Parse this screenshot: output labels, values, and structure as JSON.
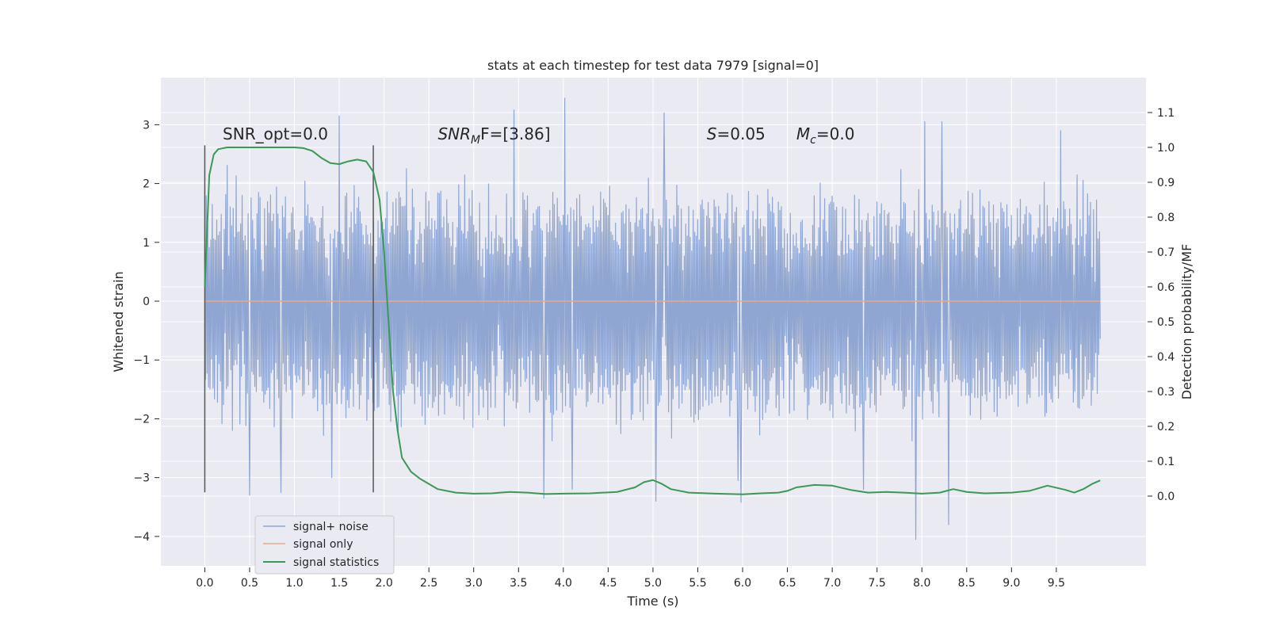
{
  "chart_data": {
    "type": "line",
    "title": "stats at each timestep for test data 7979 [signal=0]",
    "xlabel": "Time (s)",
    "ylabel": "Whitened strain",
    "y2label": "Detection probability/MF",
    "xlim": [
      -0.49,
      10.5
    ],
    "ylim": [
      -4.5,
      3.8
    ],
    "y2lim": [
      -0.2,
      1.2
    ],
    "x_ticks": [
      "0.0",
      "0.5",
      "1.0",
      "1.5",
      "2.0",
      "2.5",
      "3.0",
      "3.5",
      "4.0",
      "4.5",
      "5.0",
      "5.5",
      "6.0",
      "6.5",
      "7.0",
      "7.5",
      "8.0",
      "8.5",
      "9.0",
      "9.5"
    ],
    "y_ticks": [
      "3",
      "2",
      "1",
      "0",
      "−1",
      "−2",
      "−3",
      "−4"
    ],
    "y2_ticks": [
      "1.1",
      "1.0",
      "0.9",
      "0.8",
      "0.7",
      "0.6",
      "0.5",
      "0.4",
      "0.3",
      "0.2",
      "0.1",
      "0.0"
    ],
    "grid": true,
    "legend_position": "lower-left",
    "vlines": [
      0.0,
      1.88
    ],
    "vline_ymin": -3.25,
    "vline_ymax": 2.65,
    "annotations": [
      {
        "text": "SNR_opt=0.0",
        "x": 0.2,
        "y": 2.75
      },
      {
        "main": "SNR",
        "sub": "M",
        "rest": "F=[3.86]",
        "x": 2.6,
        "y": 2.75
      },
      {
        "main": "S",
        "rest": "=0.05",
        "x": 5.6,
        "y": 2.75
      },
      {
        "main": "M",
        "sub": "c",
        "rest": "=0.0",
        "x": 6.6,
        "y": 2.75
      }
    ],
    "series": [
      {
        "name": "signal+ noise",
        "color": "#8fa6d2",
        "noise": {
          "x_start": 0.0,
          "x_end": 9.99,
          "samples": 1200,
          "typical_min": -1.5,
          "typical_max": 1.4,
          "seed": 7979
        },
        "extremes": [
          {
            "x": 0.5,
            "y": -3.3
          },
          {
            "x": 0.85,
            "y": -3.25
          },
          {
            "x": 1.5,
            "y": 3.15
          },
          {
            "x": 1.42,
            "y": -3.0
          },
          {
            "x": 3.45,
            "y": 3.25
          },
          {
            "x": 3.78,
            "y": -3.35
          },
          {
            "x": 4.02,
            "y": 3.45
          },
          {
            "x": 4.1,
            "y": -3.2
          },
          {
            "x": 5.03,
            "y": -3.4
          },
          {
            "x": 5.12,
            "y": 3.2
          },
          {
            "x": 5.95,
            "y": -3.05
          },
          {
            "x": 5.98,
            "y": -3.42
          },
          {
            "x": 7.35,
            "y": -3.2
          },
          {
            "x": 7.93,
            "y": -4.05
          },
          {
            "x": 8.3,
            "y": -3.8
          },
          {
            "x": 8.03,
            "y": 3.05
          },
          {
            "x": 8.22,
            "y": 3.05
          },
          {
            "x": 9.55,
            "y": 2.9
          }
        ]
      },
      {
        "name": "signal only",
        "color": "#e8a989",
        "x": [
          0.0,
          9.99
        ],
        "y": [
          0.0,
          0.0
        ]
      },
      {
        "name": "signal statistics",
        "axis": "right",
        "color": "#3a9a55",
        "x": [
          0.0,
          0.05,
          0.1,
          0.15,
          0.25,
          0.4,
          0.6,
          0.8,
          1.0,
          1.1,
          1.2,
          1.3,
          1.4,
          1.5,
          1.6,
          1.7,
          1.8,
          1.88,
          1.95,
          2.0,
          2.05,
          2.1,
          2.15,
          2.2,
          2.3,
          2.4,
          2.6,
          2.8,
          3.0,
          3.2,
          3.4,
          3.6,
          3.8,
          4.0,
          4.3,
          4.6,
          4.8,
          4.9,
          5.0,
          5.1,
          5.2,
          5.4,
          5.7,
          6.0,
          6.2,
          6.4,
          6.5,
          6.6,
          6.8,
          7.0,
          7.2,
          7.4,
          7.6,
          7.8,
          8.0,
          8.2,
          8.35,
          8.5,
          8.7,
          9.0,
          9.2,
          9.4,
          9.6,
          9.7,
          9.8,
          9.9,
          9.99
        ],
        "y": [
          0.6,
          0.92,
          0.98,
          0.995,
          1.0,
          1.0,
          1.0,
          1.0,
          1.0,
          0.998,
          0.99,
          0.97,
          0.955,
          0.952,
          0.96,
          0.965,
          0.96,
          0.93,
          0.85,
          0.7,
          0.5,
          0.3,
          0.19,
          0.11,
          0.07,
          0.05,
          0.02,
          0.01,
          0.007,
          0.008,
          0.012,
          0.01,
          0.006,
          0.007,
          0.008,
          0.012,
          0.025,
          0.04,
          0.046,
          0.035,
          0.02,
          0.01,
          0.007,
          0.005,
          0.008,
          0.01,
          0.015,
          0.025,
          0.032,
          0.03,
          0.018,
          0.01,
          0.012,
          0.01,
          0.007,
          0.01,
          0.02,
          0.012,
          0.008,
          0.01,
          0.015,
          0.03,
          0.018,
          0.01,
          0.02,
          0.035,
          0.045
        ]
      }
    ]
  }
}
